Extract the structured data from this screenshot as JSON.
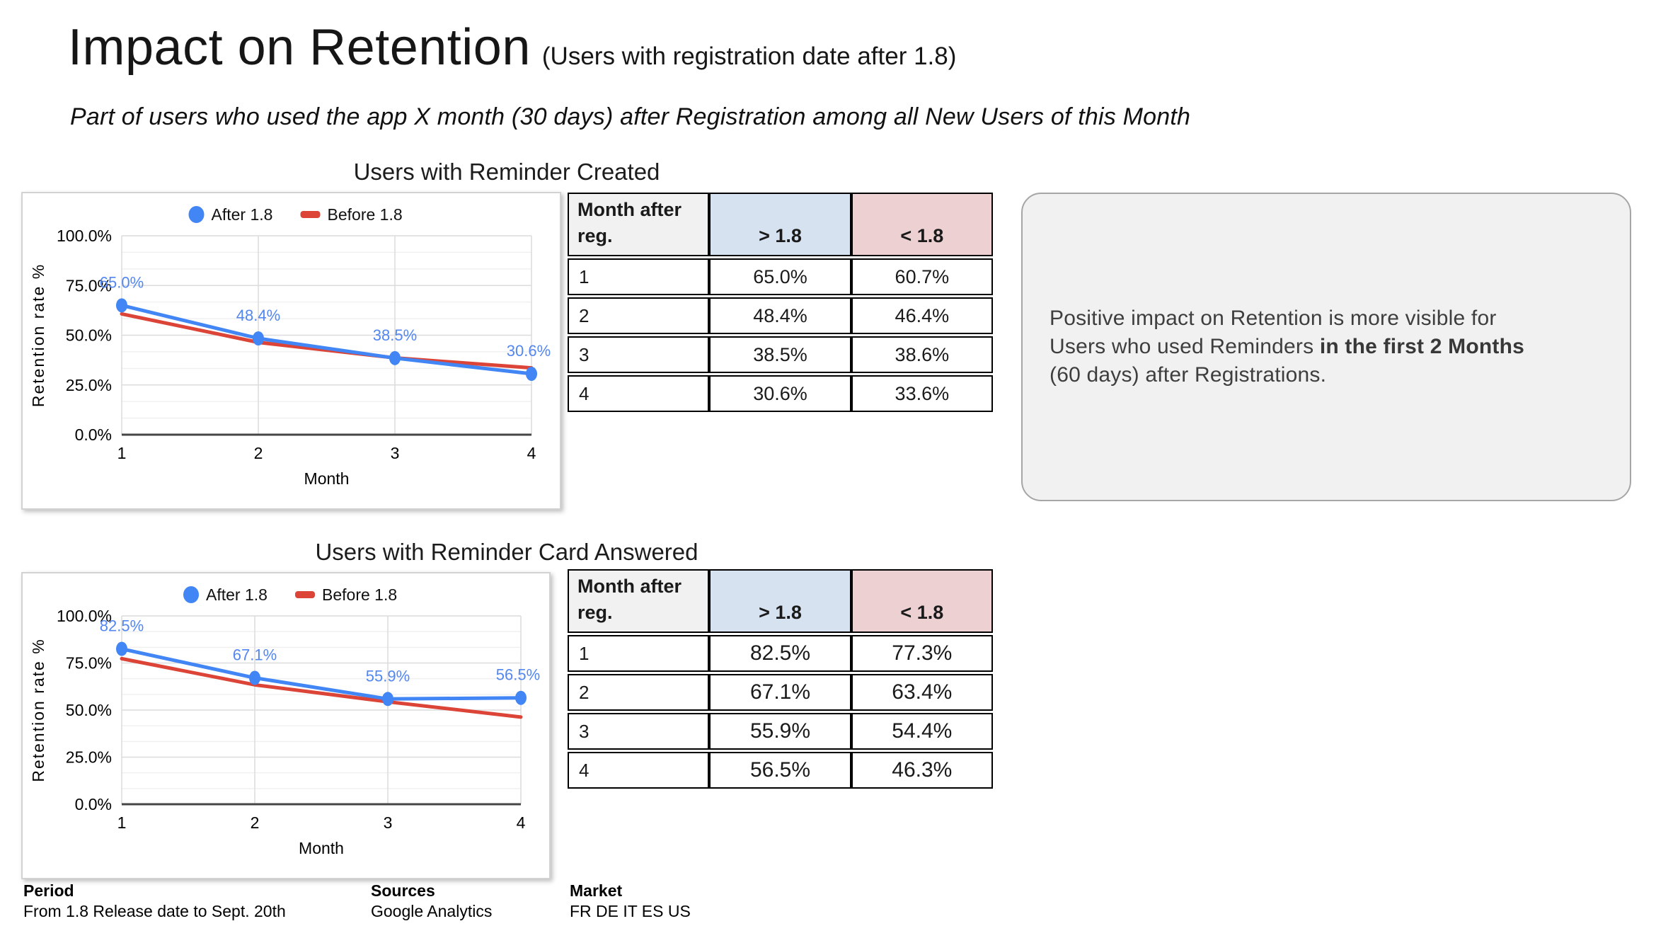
{
  "page": {
    "title": "Impact on Retention",
    "title_suffix": "(Users with registration date after 1.8)",
    "subtitle": "Part of users who used the app X month (30 days) after Registration among all New Users of this Month"
  },
  "sections": [
    {
      "title": "Users with Reminder Created"
    },
    {
      "title": "Users with Reminder Card Answered"
    }
  ],
  "chart_data": [
    {
      "type": "line",
      "title": "Users with Reminder Created",
      "x": [
        1,
        2,
        3,
        4
      ],
      "xlabel": "Month",
      "ylabel": "Retention rate %",
      "ylim": [
        0,
        100
      ],
      "ytick_labels": [
        "0.0%",
        "25.0%",
        "50.0%",
        "75.0%",
        "100.0%"
      ],
      "grid": true,
      "legend_position": "top",
      "series": [
        {
          "name": "After 1.8",
          "color": "#4285F4",
          "marker": "circle",
          "values": [
            65.0,
            48.4,
            38.5,
            30.6
          ],
          "point_labels": [
            "65.0%",
            "48.4%",
            "38.5%",
            "30.6%"
          ]
        },
        {
          "name": "Before 1.8",
          "color": "#DB4437",
          "marker": "dash",
          "values": [
            60.7,
            46.4,
            38.6,
            33.6
          ]
        }
      ]
    },
    {
      "type": "line",
      "title": "Users with Reminder Card Answered",
      "x": [
        1,
        2,
        3,
        4
      ],
      "xlabel": "Month",
      "ylabel": "Retention rate %",
      "ylim": [
        0,
        100
      ],
      "ytick_labels": [
        "0.0%",
        "25.0%",
        "50.0%",
        "75.0%",
        "100.0%"
      ],
      "grid": true,
      "legend_position": "top",
      "series": [
        {
          "name": "After 1.8",
          "color": "#4285F4",
          "marker": "circle",
          "values": [
            82.5,
            67.1,
            55.9,
            56.5
          ],
          "point_labels": [
            "82.5%",
            "67.1%",
            "55.9%",
            "56.5%"
          ]
        },
        {
          "name": "Before 1.8",
          "color": "#DB4437",
          "marker": "dash",
          "values": [
            77.3,
            63.4,
            54.4,
            46.3
          ]
        }
      ]
    }
  ],
  "tables": [
    {
      "headers": [
        "Month after reg.",
        "> 1.8",
        "< 1.8"
      ],
      "rows": [
        [
          "1",
          "65.0%",
          "60.7%"
        ],
        [
          "2",
          "48.4%",
          "46.4%"
        ],
        [
          "3",
          "38.5%",
          "38.6%"
        ],
        [
          "4",
          "30.6%",
          "33.6%"
        ]
      ]
    },
    {
      "headers": [
        "Month after reg.",
        "> 1.8",
        "< 1.8"
      ],
      "rows": [
        [
          "1",
          "82.5%",
          "77.3%"
        ],
        [
          "2",
          "67.1%",
          "63.4%"
        ],
        [
          "3",
          "55.9%",
          "54.4%"
        ],
        [
          "4",
          "56.5%",
          "46.3%"
        ]
      ]
    }
  ],
  "callout": {
    "line1": "Positive impact on Retention is more visible for",
    "line2_pre": "Users who used Reminders ",
    "line2_bold": "in the first 2 Months",
    "line3": "(60 days) after Registrations."
  },
  "footer": {
    "items": [
      {
        "label": "Period",
        "value": "From 1.8 Release date to Sept. 20th"
      },
      {
        "label": "Sources",
        "value": "Google Analytics"
      },
      {
        "label": "Market",
        "value": "FR DE IT ES US"
      }
    ]
  },
  "colors": {
    "series_after": "#4285F4",
    "series_before": "#DB4437",
    "data_label": "#5387F0",
    "grid_major": "#dcdcdc",
    "grid_minor": "#f0f0f0",
    "axis_zero": "#454545",
    "header_gray": "#F1F1F1",
    "header_blue": "#D6E2F0",
    "header_pink": "#ECD0D2"
  }
}
